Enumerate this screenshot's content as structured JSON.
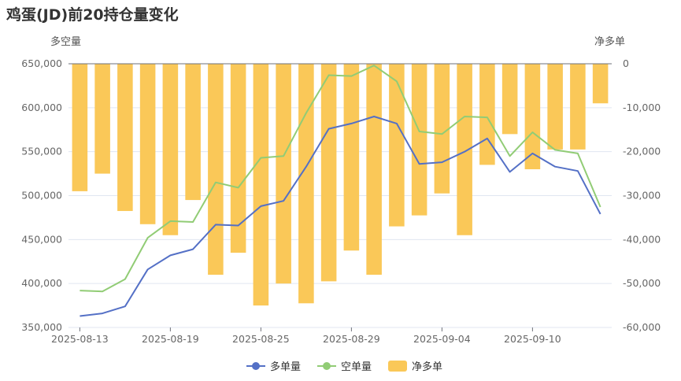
{
  "chart_data": {
    "type": "bar+line",
    "title": "鸡蛋(JD)前20持仓量变化",
    "y_left_label": "多空量",
    "y_right_label": "净多单",
    "y_left_ticks": [
      "650,000",
      "600,000",
      "550,000",
      "500,000",
      "450,000",
      "400,000",
      "350,000"
    ],
    "y_right_ticks": [
      "0",
      "-10,000",
      "-20,000",
      "-30,000",
      "-40,000",
      "-50,000",
      "-60,000"
    ],
    "y_left_range": [
      350000,
      650000
    ],
    "y_right_range": [
      -60000,
      0
    ],
    "x_tick_labels": [
      "2025-08-13",
      "2025-08-19",
      "2025-08-25",
      "2025-08-29",
      "2025-09-04",
      "2025-09-10"
    ],
    "x": [
      "2025-08-13",
      "2025-08-14",
      "2025-08-15",
      "2025-08-18",
      "2025-08-19",
      "2025-08-20",
      "2025-08-21",
      "2025-08-22",
      "2025-08-25",
      "2025-08-26",
      "2025-08-27",
      "2025-08-28",
      "2025-08-29",
      "2025-09-01",
      "2025-09-02",
      "2025-09-03",
      "2025-09-04",
      "2025-09-05",
      "2025-09-08",
      "2025-09-09",
      "2025-09-10",
      "2025-09-11",
      "2025-09-12",
      "2025-09-15"
    ],
    "series": [
      {
        "name": "多单量",
        "type": "line",
        "axis": "left",
        "color": "#5470c6",
        "values": [
          363000,
          366000,
          374000,
          416000,
          432000,
          439000,
          467000,
          466000,
          488000,
          494000,
          533000,
          576000,
          582000,
          590000,
          582000,
          536000,
          538000,
          550000,
          565000,
          527000,
          548000,
          533000,
          528000,
          479000
        ]
      },
      {
        "name": "空单量",
        "type": "line",
        "axis": "left",
        "color": "#91cc75",
        "values": [
          392000,
          391000,
          405000,
          452000,
          471000,
          470000,
          515000,
          509000,
          543000,
          545000,
          594000,
          637000,
          636000,
          648000,
          630000,
          573000,
          570000,
          590000,
          589000,
          545000,
          572000,
          552000,
          548000,
          487000
        ]
      },
      {
        "name": "净多单",
        "type": "bar",
        "axis": "right",
        "color": "#fac858",
        "values": [
          -29000,
          -25000,
          -33500,
          -36500,
          -39000,
          -31000,
          -48000,
          -43000,
          -55000,
          -50000,
          -54500,
          -49500,
          -42500,
          -48000,
          -37000,
          -34500,
          -29500,
          -39000,
          -23000,
          -16000,
          -24000,
          -19500,
          -19500,
          -9000
        ]
      }
    ],
    "legend": [
      "多单量",
      "空单量",
      "净多单"
    ],
    "legend_position": "bottom-center",
    "grid": true
  }
}
